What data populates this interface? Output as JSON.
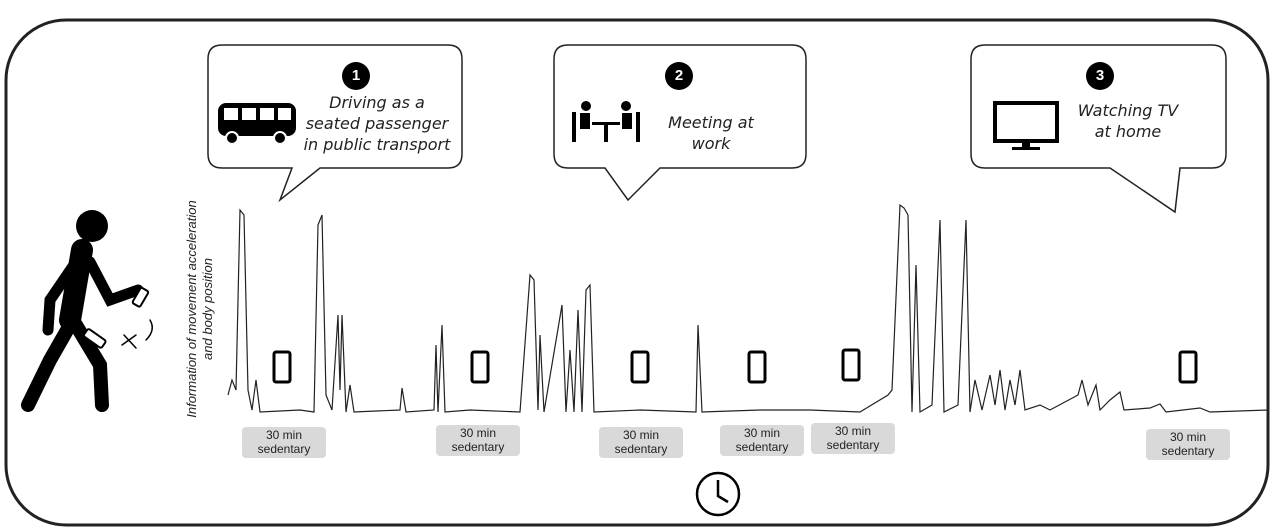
{
  "callouts": [
    {
      "number": "1",
      "label": "Driving as a seated passenger in public transport"
    },
    {
      "number": "2",
      "label": "Meeting at work"
    },
    {
      "number": "3",
      "label": "Watching TV at home"
    }
  ],
  "axis_label": "Information of movement acceleration and body position",
  "sedentary_labels": [
    "30 min sedentary",
    "30 min sedentary",
    "30 min sedentary",
    "30 min sedentary",
    "30 min sedentary",
    "30 min sedentary"
  ]
}
